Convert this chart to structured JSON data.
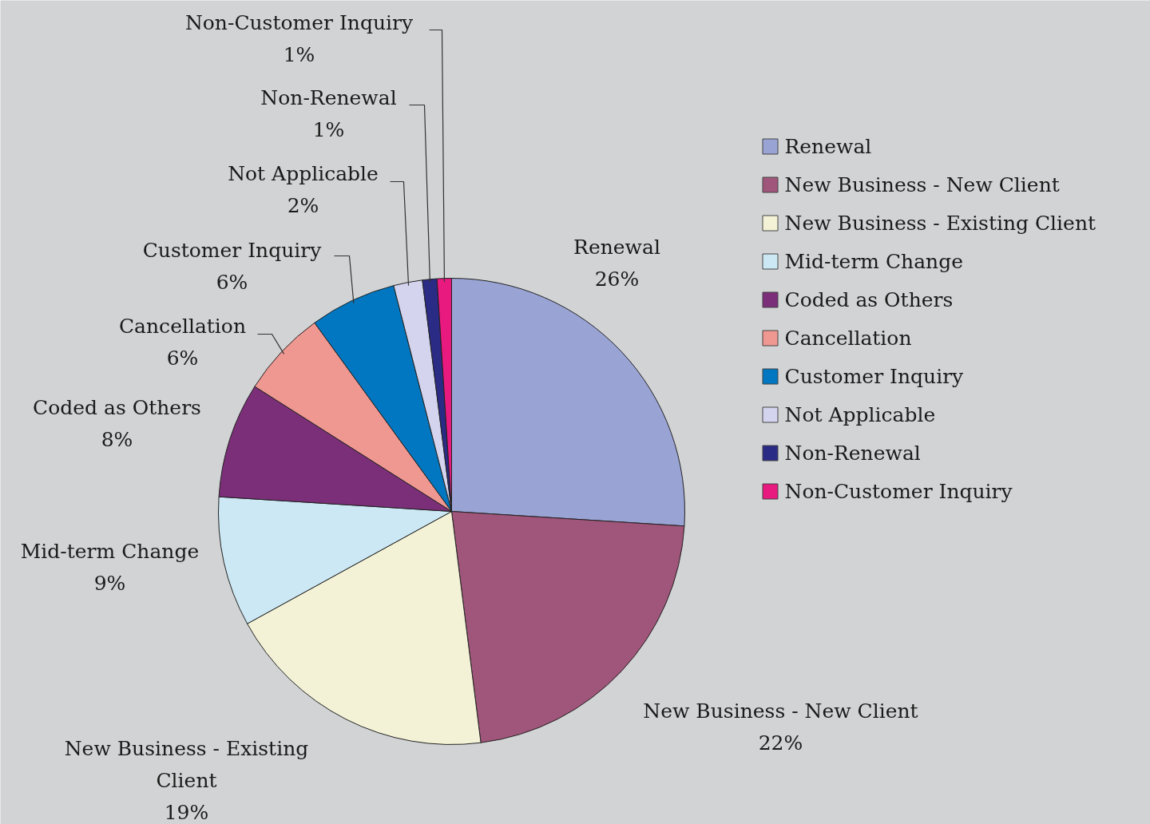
{
  "chart_data": {
    "type": "pie",
    "categories": [
      "Renewal",
      "New Business - New Client",
      "New Business - Existing Client",
      "Mid-term Change",
      "Coded as Others",
      "Cancellation",
      "Customer Inquiry",
      "Not Applicable",
      "Non-Renewal",
      "Non-Customer Inquiry"
    ],
    "values": [
      26,
      22,
      19,
      9,
      8,
      6,
      6,
      2,
      1,
      1
    ],
    "colors": [
      "#9aa4d4",
      "#a0557a",
      "#f3f2d6",
      "#cce8f4",
      "#7b2f78",
      "#ef9791",
      "#0077c0",
      "#d4d4ef",
      "#2a2b85",
      "#e8197f"
    ],
    "value_labels": [
      "26%",
      "22%",
      "19%",
      "9%",
      "8%",
      "6%",
      "6%",
      "2%",
      "1%",
      "1%"
    ],
    "legend": "right"
  }
}
